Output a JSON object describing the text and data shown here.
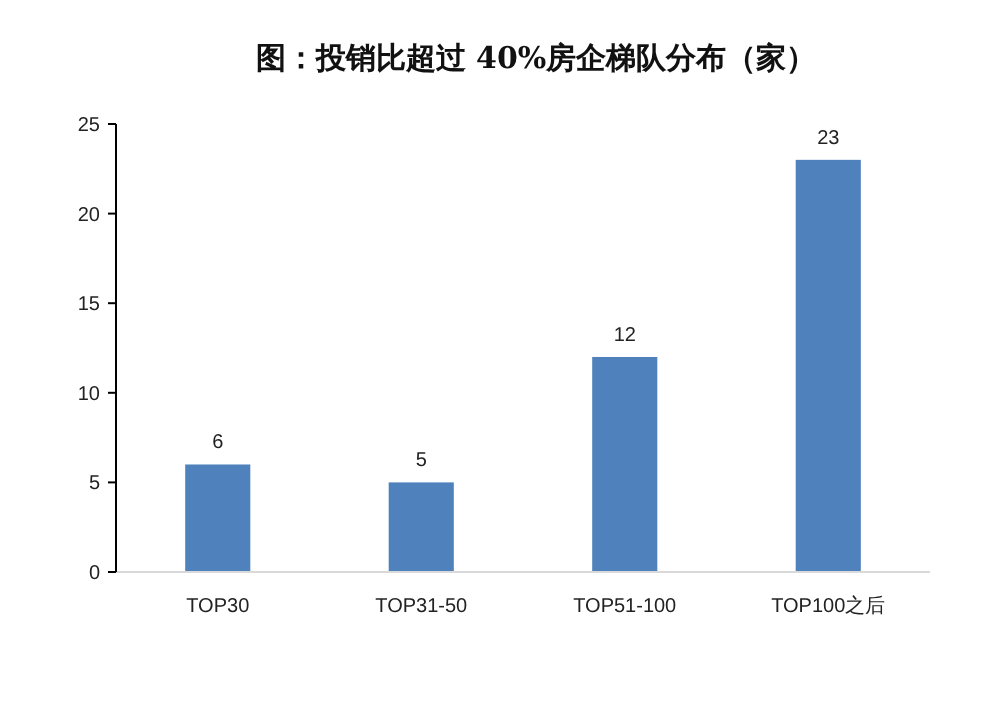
{
  "chart_data": {
    "type": "bar",
    "title": "图：投销比超过 40%房企梯队分布（家）",
    "categories": [
      "TOP30",
      "TOP31-50",
      "TOP51-100",
      "TOP100之后"
    ],
    "values": [
      6,
      5,
      12,
      23
    ],
    "color": "#4f81bd",
    "ylim": [
      0,
      25
    ],
    "yticks": [
      0,
      5,
      10,
      15,
      20,
      25
    ],
    "grid": false,
    "data_labels": true
  }
}
